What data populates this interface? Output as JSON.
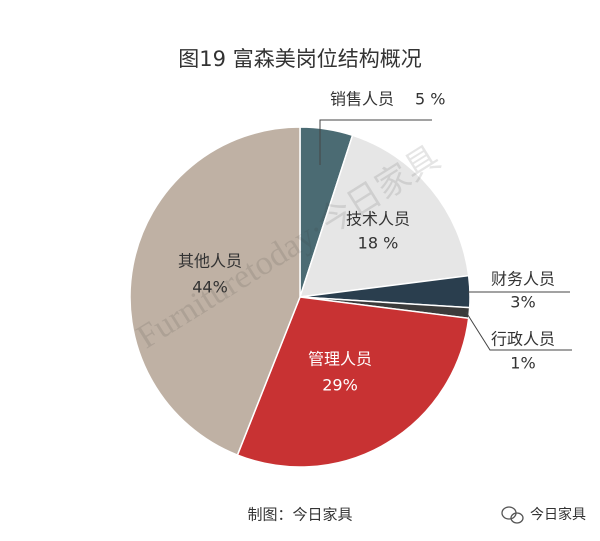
{
  "chart_data": {
    "type": "pie",
    "title": "图19  富森美岗位结构概况",
    "categories": [
      "销售人员",
      "技术人员",
      "财务人员",
      "行政人员",
      "管理人员",
      "其他人员"
    ],
    "values": [
      5,
      18,
      3,
      1,
      29,
      44
    ],
    "value_labels": [
      "5 %",
      "18 %",
      "3%",
      "1%",
      "29%",
      "44%"
    ],
    "colors": [
      "#4b6b73",
      "#e6e6e6",
      "#2a3e4e",
      "#3b3b3b",
      "#c83233",
      "#bfb1a4"
    ],
    "watermark": "Furnituretoday·今日家具",
    "source": "制图：今日家具",
    "brand": "今日家具"
  }
}
